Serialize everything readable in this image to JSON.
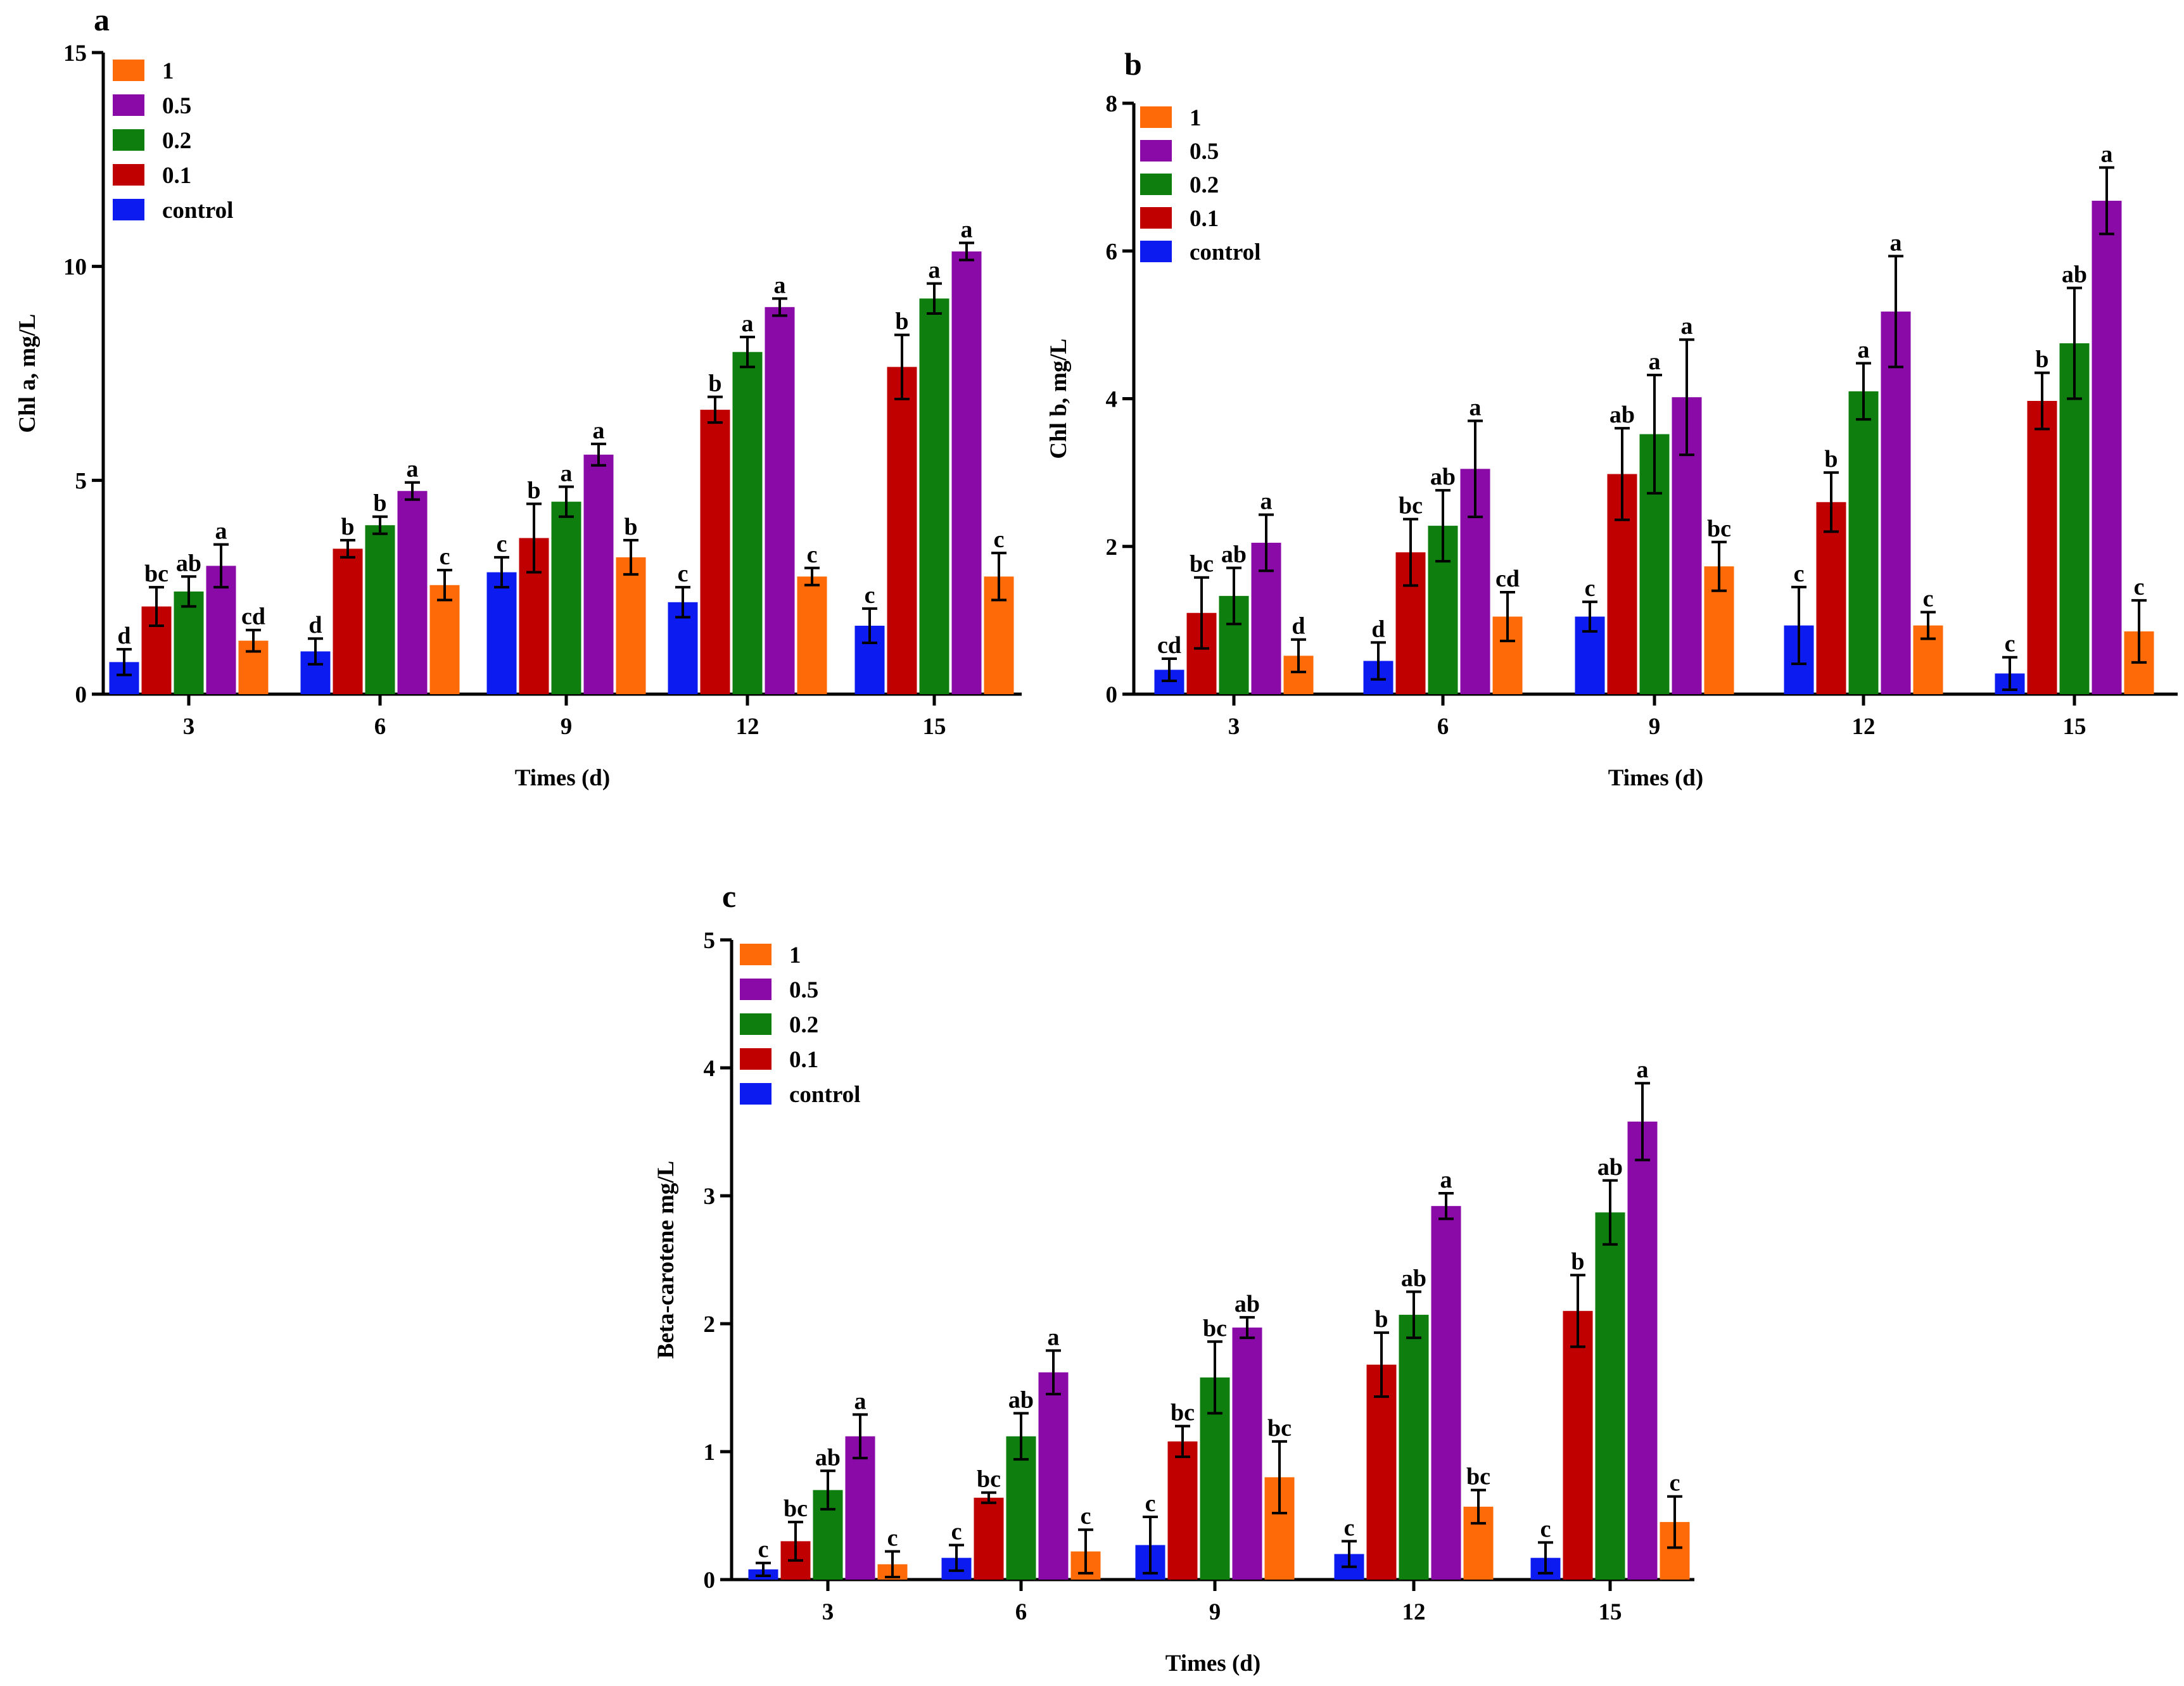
{
  "colors": {
    "control": "#0c1bf0",
    "0.1": "#c00000",
    "0.2": "#0e7f0e",
    "0.5": "#8a0aa8",
    "1": "#ff6a08"
  },
  "chart_data": [
    {
      "panel": "a",
      "type": "bar",
      "ylabel": "Chl a, mg/L",
      "xlabel": "Times (d)",
      "ylim": [
        0,
        15
      ],
      "yticks": [
        0,
        5,
        10,
        15
      ],
      "categories": [
        "3",
        "6",
        "9",
        "12",
        "15"
      ],
      "legend": [
        "1",
        "0.5",
        "0.2",
        "0.1",
        "control"
      ],
      "legend_position": "top-left",
      "series": [
        {
          "name": "control",
          "values": [
            0.75,
            1.0,
            2.85,
            2.15,
            1.6
          ],
          "errors": [
            0.3,
            0.3,
            0.35,
            0.35,
            0.4
          ],
          "labels": [
            "d",
            "d",
            "c",
            "c",
            "c"
          ]
        },
        {
          "name": "0.1",
          "values": [
            2.05,
            3.4,
            3.65,
            6.65,
            7.65
          ],
          "errors": [
            0.45,
            0.2,
            0.8,
            0.3,
            0.75
          ],
          "labels": [
            "bc",
            "b",
            "b",
            "b",
            "b"
          ]
        },
        {
          "name": "0.2",
          "values": [
            2.4,
            3.95,
            4.5,
            8.0,
            9.25
          ],
          "errors": [
            0.35,
            0.2,
            0.35,
            0.35,
            0.35
          ],
          "labels": [
            "ab",
            "b",
            "a",
            "a",
            "a"
          ]
        },
        {
          "name": "0.5",
          "values": [
            3.0,
            4.75,
            5.6,
            9.05,
            10.35
          ],
          "errors": [
            0.5,
            0.2,
            0.25,
            0.2,
            0.2
          ],
          "labels": [
            "a",
            "a",
            "a",
            "a",
            "a"
          ]
        },
        {
          "name": "1",
          "values": [
            1.25,
            2.55,
            3.2,
            2.75,
            2.75
          ],
          "errors": [
            0.25,
            0.35,
            0.4,
            0.2,
            0.55
          ],
          "labels": [
            "cd",
            "c",
            "b",
            "c",
            "c"
          ]
        }
      ]
    },
    {
      "panel": "b",
      "type": "bar",
      "ylabel": "Chl b, mg/L",
      "xlabel": "Times (d)",
      "ylim": [
        0,
        8
      ],
      "yticks": [
        0,
        2,
        4,
        6,
        8
      ],
      "categories": [
        "3",
        "6",
        "9",
        "12",
        "15"
      ],
      "legend": [
        "1",
        "0.5",
        "0.2",
        "0.1",
        "control"
      ],
      "legend_position": "top-left",
      "series": [
        {
          "name": "control",
          "values": [
            0.33,
            0.45,
            1.05,
            0.93,
            0.28
          ],
          "errors": [
            0.15,
            0.25,
            0.2,
            0.52,
            0.22
          ],
          "labels": [
            "cd",
            "d",
            "c",
            "c",
            "c"
          ]
        },
        {
          "name": "0.1",
          "values": [
            1.1,
            1.92,
            2.98,
            2.6,
            3.97
          ],
          "errors": [
            0.48,
            0.45,
            0.62,
            0.4,
            0.38
          ],
          "labels": [
            "bc",
            "bc",
            "ab",
            "b",
            "b"
          ]
        },
        {
          "name": "0.2",
          "values": [
            1.33,
            2.28,
            3.52,
            4.1,
            4.75
          ],
          "errors": [
            0.38,
            0.48,
            0.8,
            0.38,
            0.75
          ],
          "labels": [
            "ab",
            "ab",
            "a",
            "a",
            "ab"
          ]
        },
        {
          "name": "0.5",
          "values": [
            2.05,
            3.05,
            4.02,
            5.18,
            6.68
          ],
          "errors": [
            0.38,
            0.65,
            0.78,
            0.75,
            0.45
          ],
          "labels": [
            "a",
            "a",
            "a",
            "a",
            "a"
          ]
        },
        {
          "name": "1",
          "values": [
            0.52,
            1.05,
            1.73,
            0.93,
            0.85
          ],
          "errors": [
            0.22,
            0.33,
            0.33,
            0.18,
            0.42
          ],
          "labels": [
            "d",
            "cd",
            "bc",
            "c",
            "c"
          ]
        }
      ]
    },
    {
      "panel": "c",
      "type": "bar",
      "ylabel": "Beta-carotene mg/L",
      "xlabel": "Times (d)",
      "ylim": [
        0,
        5
      ],
      "yticks": [
        0,
        1,
        2,
        3,
        4,
        5
      ],
      "categories": [
        "3",
        "6",
        "9",
        "12",
        "15"
      ],
      "legend": [
        "1",
        "0.5",
        "0.2",
        "0.1",
        "control"
      ],
      "legend_position": "top-left",
      "series": [
        {
          "name": "control",
          "values": [
            0.08,
            0.17,
            0.27,
            0.2,
            0.17
          ],
          "errors": [
            0.05,
            0.1,
            0.22,
            0.1,
            0.12
          ],
          "labels": [
            "c",
            "c",
            "c",
            "c",
            "c"
          ]
        },
        {
          "name": "0.1",
          "values": [
            0.3,
            0.64,
            1.08,
            1.68,
            2.1
          ],
          "errors": [
            0.15,
            0.04,
            0.12,
            0.25,
            0.28
          ],
          "labels": [
            "bc",
            "bc",
            "bc",
            "b",
            "b"
          ]
        },
        {
          "name": "0.2",
          "values": [
            0.7,
            1.12,
            1.58,
            2.07,
            2.87
          ],
          "errors": [
            0.15,
            0.18,
            0.28,
            0.18,
            0.25
          ],
          "labels": [
            "ab",
            "ab",
            "bc",
            "ab",
            "ab"
          ]
        },
        {
          "name": "0.5",
          "values": [
            1.12,
            1.62,
            1.97,
            2.92,
            3.58
          ],
          "errors": [
            0.17,
            0.17,
            0.08,
            0.1,
            0.3
          ],
          "labels": [
            "a",
            "a",
            "ab",
            "a",
            "a"
          ]
        },
        {
          "name": "1",
          "values": [
            0.12,
            0.22,
            0.8,
            0.57,
            0.45
          ],
          "errors": [
            0.1,
            0.17,
            0.28,
            0.13,
            0.2
          ],
          "labels": [
            "c",
            "c",
            "bc",
            "bc",
            "c"
          ]
        }
      ]
    }
  ]
}
